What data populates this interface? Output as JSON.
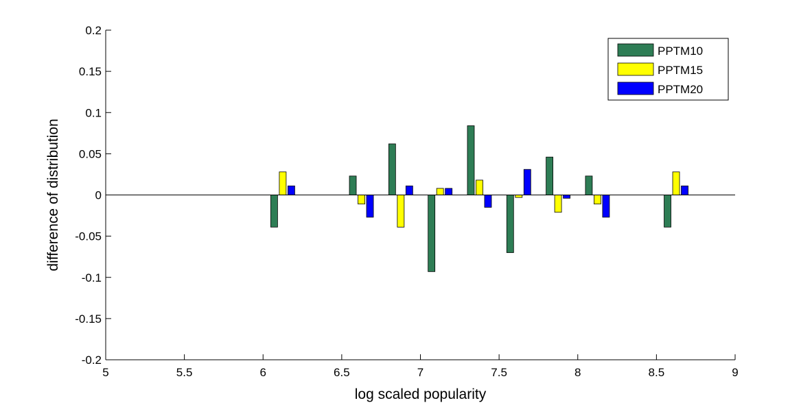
{
  "chart_data": {
    "type": "bar",
    "title": "",
    "xlabel": "log scaled popularity",
    "ylabel": "difference of distribution",
    "xlim": [
      5,
      9
    ],
    "ylim": [
      -0.2,
      0.2
    ],
    "xticks": [
      5,
      5.5,
      6,
      6.5,
      7,
      7.5,
      8,
      8.5,
      9
    ],
    "xtick_labels": [
      "5",
      "5.5",
      "6",
      "6.5",
      "7",
      "7.5",
      "8",
      "8.5",
      "9"
    ],
    "yticks": [
      -0.2,
      -0.15,
      -0.1,
      -0.05,
      0,
      0.05,
      0.1,
      0.15,
      0.2
    ],
    "ytick_labels": [
      "-0.2",
      "-0.15",
      "-0.1",
      "-0.05",
      "0",
      "0.05",
      "0.1",
      "0.15",
      "0.2"
    ],
    "legend_position": "top-right",
    "grid": false,
    "x": [
      6.125,
      6.625,
      6.875,
      7.125,
      7.375,
      7.625,
      7.875,
      8.125,
      8.625
    ],
    "series": [
      {
        "name": "PPTM10",
        "color": "#2e7d55",
        "values": [
          -0.039,
          0.023,
          0.062,
          -0.093,
          0.084,
          -0.07,
          0.046,
          0.023,
          -0.039
        ]
      },
      {
        "name": "PPTM15",
        "color": "#ffff00",
        "values": [
          0.028,
          -0.011,
          -0.039,
          0.008,
          0.018,
          -0.003,
          -0.021,
          -0.011,
          0.028
        ]
      },
      {
        "name": "PPTM20",
        "color": "#0000ff",
        "values": [
          0.011,
          -0.027,
          0.011,
          0.008,
          -0.015,
          0.031,
          -0.004,
          -0.027,
          0.011
        ]
      }
    ]
  }
}
